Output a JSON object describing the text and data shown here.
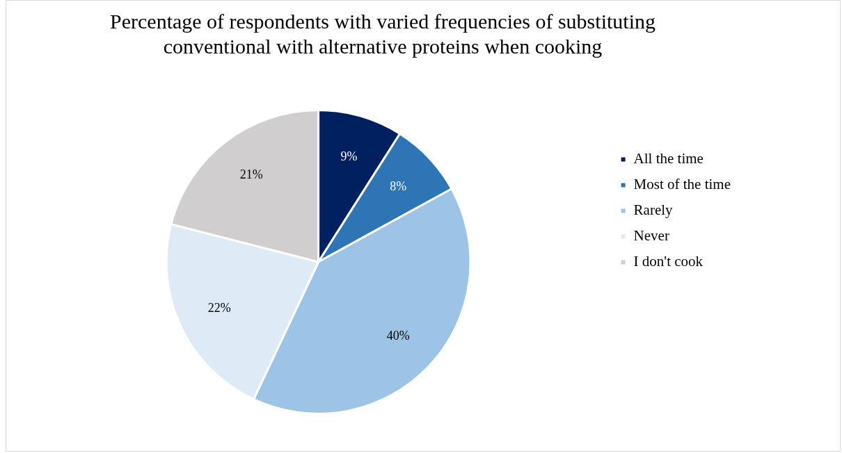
{
  "chart_data": {
    "type": "pie",
    "title": "Percentage of respondents with varied frequencies of substituting conventional with alternative proteins when cooking",
    "categories": [
      "All the time",
      "Most of the time",
      "Rarely",
      "Never",
      "I don't cook"
    ],
    "values": [
      9,
      8,
      40,
      22,
      21
    ],
    "colors": [
      "#002060",
      "#2e75b6",
      "#9dc3e6",
      "#deebf7",
      "#d0cece"
    ],
    "value_labels": [
      "9%",
      "8%",
      "40%",
      "22%",
      "21%"
    ],
    "legend": "right"
  }
}
